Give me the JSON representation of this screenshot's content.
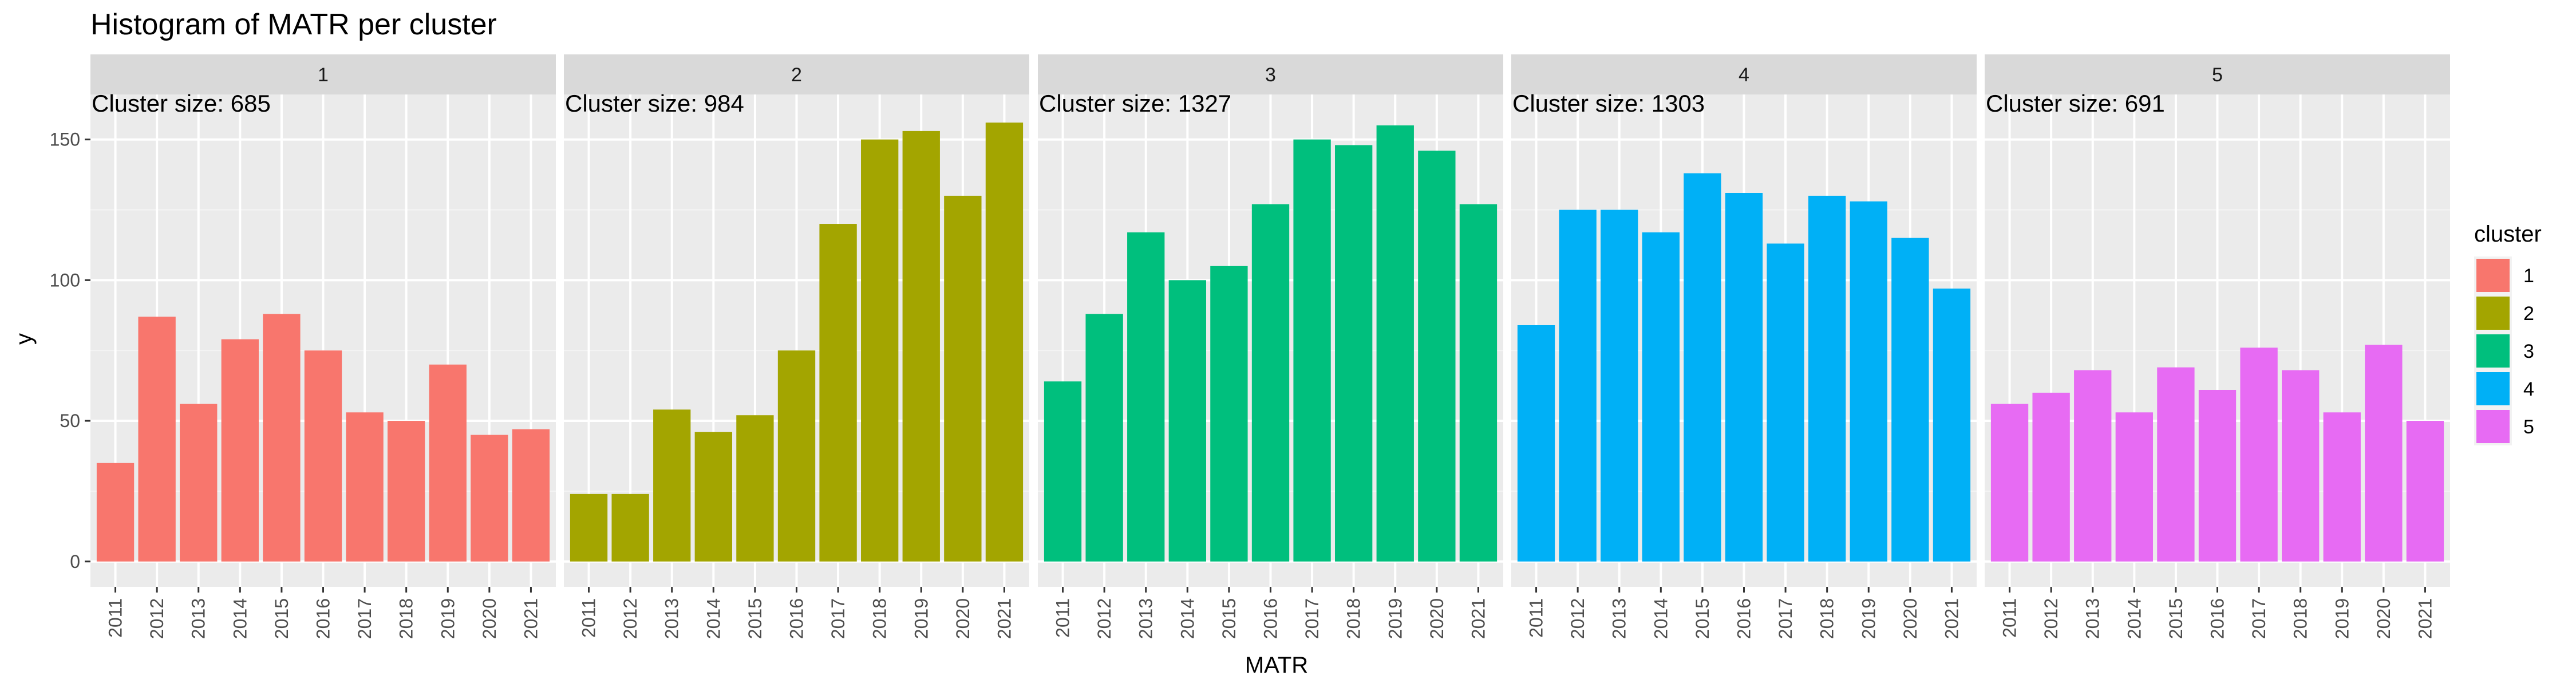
{
  "chart_data": {
    "type": "bar",
    "title": "Histogram of MATR per cluster",
    "xlabel": "MATR",
    "ylabel": "y",
    "ylim": [
      -9,
      166
    ],
    "yticks": [
      0,
      50,
      100,
      150
    ],
    "categories": [
      "2011",
      "2012",
      "2013",
      "2014",
      "2015",
      "2016",
      "2017",
      "2018",
      "2019",
      "2020",
      "2021"
    ],
    "grid": true,
    "legend": {
      "title": "cluster",
      "position": "right",
      "entries": [
        {
          "label": "1",
          "color": "#F8766D"
        },
        {
          "label": "2",
          "color": "#A3A500"
        },
        {
          "label": "3",
          "color": "#00BF7D"
        },
        {
          "label": "4",
          "color": "#00B0F6"
        },
        {
          "label": "5",
          "color": "#E76BF3"
        }
      ]
    },
    "panels": [
      {
        "strip": "1",
        "annotation": "Cluster size: 685",
        "color": "#F8766D",
        "values": [
          35,
          87,
          56,
          79,
          88,
          75,
          53,
          50,
          70,
          45,
          47
        ]
      },
      {
        "strip": "2",
        "annotation": "Cluster size: 984",
        "color": "#A3A500",
        "values": [
          24,
          24,
          54,
          46,
          52,
          75,
          120,
          150,
          153,
          130,
          156
        ]
      },
      {
        "strip": "3",
        "annotation": "Cluster size: 1327",
        "color": "#00BF7D",
        "values": [
          64,
          88,
          117,
          100,
          105,
          127,
          150,
          148,
          155,
          146,
          127
        ]
      },
      {
        "strip": "4",
        "annotation": "Cluster size: 1303",
        "color": "#00B0F6",
        "values": [
          84,
          125,
          125,
          117,
          138,
          131,
          113,
          130,
          128,
          115,
          97
        ]
      },
      {
        "strip": "5",
        "annotation": "Cluster size: 691",
        "color": "#E76BF3",
        "values": [
          56,
          60,
          68,
          53,
          69,
          61,
          76,
          68,
          53,
          77,
          50
        ]
      }
    ]
  }
}
